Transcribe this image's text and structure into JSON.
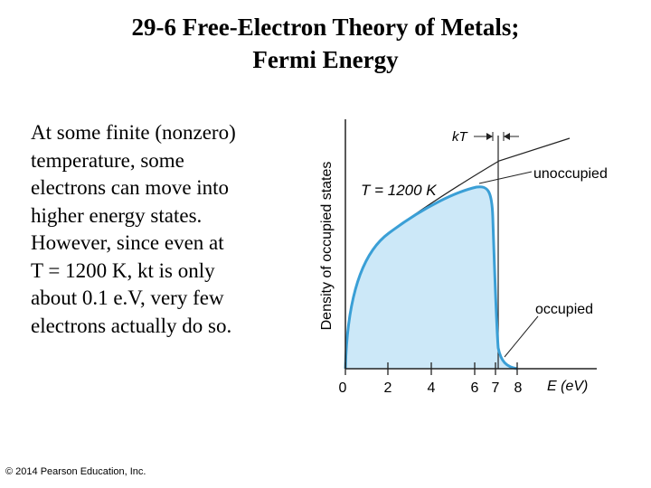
{
  "slide": {
    "title_line1": "29-6 Free-Electron Theory of Metals;",
    "title_line2": "Fermi Energy",
    "body_lines": [
      "At some finite (nonzero)",
      "temperature, some",
      "electrons can move into",
      "higher energy states.",
      "However, since even at",
      "T = 1200 K, kt is only",
      "about 0.1 e.V, very few",
      "electrons actually do so."
    ],
    "copyright": "© 2014 Pearson Education, Inc."
  },
  "figure": {
    "ylabel": "Density of occupied states",
    "xlabel": "E (eV)",
    "temp_label": "T = 1200 K",
    "kt_label": "kT",
    "unoccupied_label": "unoccupied",
    "occupied_label": "occupied",
    "x_ticks": [
      "0",
      "2",
      "4",
      "6",
      "7",
      "8"
    ],
    "fill_color": "#cce8f8",
    "curve_color": "#3a9fd6"
  },
  "chart_data": {
    "type": "line",
    "title": "",
    "xlabel": "E (eV)",
    "ylabel": "Density of occupied states",
    "x_ticks": [
      0,
      2,
      4,
      6,
      7,
      8
    ],
    "xlim": [
      0,
      11
    ],
    "fermi_energy": 7,
    "series": [
      {
        "name": "T = 1200 K",
        "x": [
          0,
          1,
          2,
          3,
          4,
          5,
          6,
          6.5,
          7,
          7.5,
          8,
          10.5
        ],
        "y": [
          0,
          0.38,
          0.53,
          0.65,
          0.76,
          0.85,
          0.92,
          0.9,
          0.5,
          0.1,
          0.0,
          0.0
        ]
      }
    ],
    "annotations": [
      "kT",
      "unoccupied",
      "occupied"
    ]
  }
}
